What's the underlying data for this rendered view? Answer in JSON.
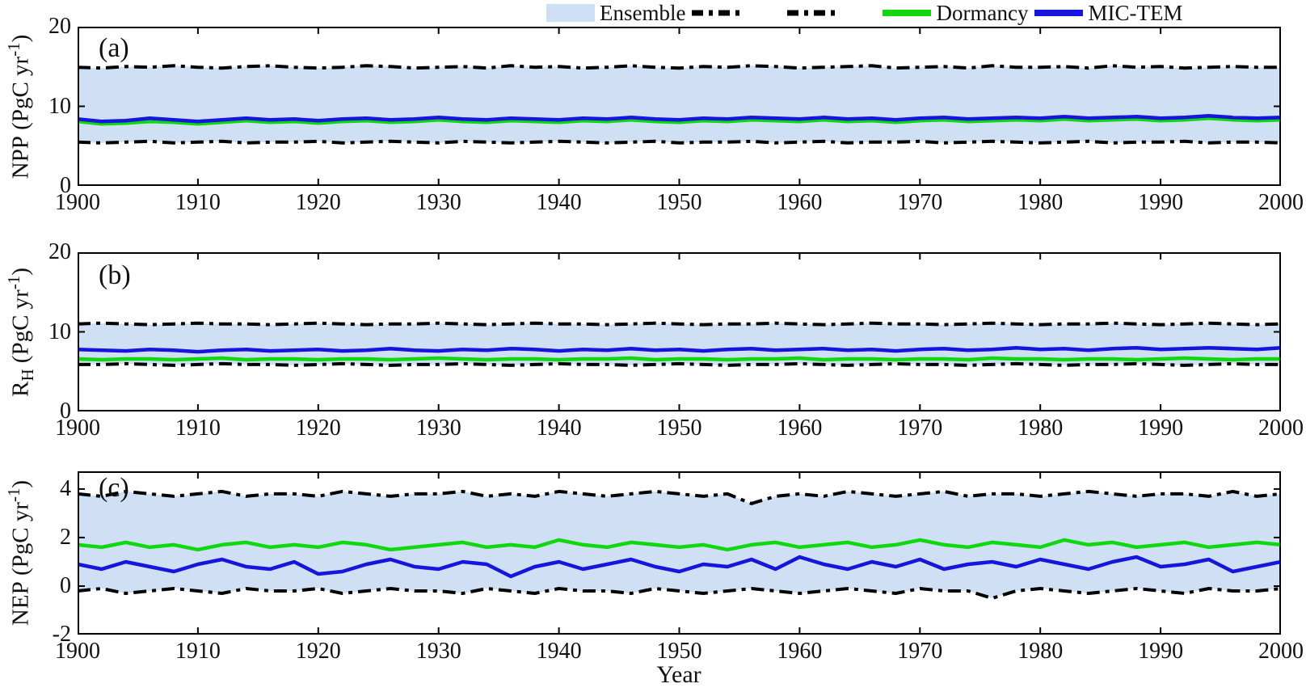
{
  "colors": {
    "ensemble_fill": "#cfe0f4",
    "bound_line": "#000000",
    "dormancy": "#0fd80f",
    "mic_tem": "#1515dd",
    "frame": "#000000"
  },
  "legend": {
    "items": [
      {
        "label": "Ensemble",
        "swatch": "patch"
      },
      {
        "label": "",
        "swatch": "dashdot"
      },
      {
        "label": "",
        "swatch": "dashdot"
      },
      {
        "label": "Dormancy",
        "swatch": "line-green"
      },
      {
        "label": "MIC-TEM",
        "swatch": "line-blue"
      }
    ]
  },
  "xlabel": "Year",
  "chart_data": [
    {
      "type": "line",
      "panel_label": "(a)",
      "ylabel": {
        "pre": "NPP",
        "sub": "",
        "mid": " (PgC yr",
        "sup": "-1",
        "post": ")"
      },
      "ylim": [
        0,
        20
      ],
      "yticks": [
        0,
        10,
        20
      ],
      "x": {
        "start": 1900,
        "end": 2000,
        "step": 2
      },
      "xticks": [
        1900,
        1910,
        1920,
        1930,
        1940,
        1950,
        1960,
        1970,
        1980,
        1990,
        2000
      ],
      "series": [
        {
          "name": "Ensemble upper bound",
          "style": "dashdot",
          "color": "bound_line",
          "values": [
            14.9,
            14.8,
            15.0,
            14.9,
            15.1,
            14.9,
            14.8,
            15.0,
            15.1,
            14.9,
            14.8,
            14.9,
            15.1,
            15.0,
            14.8,
            14.9,
            15.0,
            14.8,
            15.1,
            14.9,
            15.0,
            14.8,
            14.9,
            15.1,
            14.9,
            14.8,
            15.0,
            14.9,
            15.1,
            15.0,
            14.8,
            14.9,
            15.0,
            15.1,
            14.8,
            14.9,
            15.0,
            14.8,
            15.1,
            14.9,
            14.9,
            15.0,
            14.8,
            15.1,
            14.9,
            15.0,
            14.8,
            14.9,
            15.0,
            14.9,
            14.9
          ]
        },
        {
          "name": "Ensemble lower bound",
          "style": "dashdot",
          "color": "bound_line",
          "values": [
            5.5,
            5.4,
            5.5,
            5.6,
            5.4,
            5.5,
            5.6,
            5.4,
            5.5,
            5.5,
            5.6,
            5.4,
            5.5,
            5.6,
            5.5,
            5.4,
            5.6,
            5.5,
            5.4,
            5.5,
            5.6,
            5.5,
            5.4,
            5.5,
            5.6,
            5.4,
            5.5,
            5.5,
            5.6,
            5.4,
            5.5,
            5.6,
            5.4,
            5.5,
            5.5,
            5.6,
            5.4,
            5.5,
            5.6,
            5.5,
            5.4,
            5.5,
            5.6,
            5.4,
            5.5,
            5.5,
            5.6,
            5.4,
            5.5,
            5.5,
            5.4
          ]
        },
        {
          "name": "Dormancy",
          "style": "solid",
          "color": "dormancy",
          "values": [
            8.1,
            7.8,
            7.9,
            8.1,
            8.0,
            7.8,
            8.0,
            8.2,
            8.0,
            8.1,
            7.9,
            8.1,
            8.2,
            8.0,
            8.1,
            8.3,
            8.1,
            8.0,
            8.2,
            8.1,
            8.0,
            8.2,
            8.1,
            8.3,
            8.1,
            8.0,
            8.2,
            8.1,
            8.3,
            8.2,
            8.1,
            8.3,
            8.1,
            8.2,
            8.0,
            8.2,
            8.3,
            8.1,
            8.2,
            8.3,
            8.2,
            8.4,
            8.2,
            8.3,
            8.4,
            8.2,
            8.3,
            8.5,
            8.3,
            8.2,
            8.3
          ]
        },
        {
          "name": "MIC-TEM",
          "style": "solid",
          "color": "mic_tem",
          "values": [
            8.4,
            8.1,
            8.2,
            8.5,
            8.3,
            8.1,
            8.3,
            8.5,
            8.3,
            8.4,
            8.2,
            8.4,
            8.5,
            8.3,
            8.4,
            8.6,
            8.4,
            8.3,
            8.5,
            8.4,
            8.3,
            8.5,
            8.4,
            8.6,
            8.4,
            8.3,
            8.5,
            8.4,
            8.6,
            8.5,
            8.4,
            8.6,
            8.4,
            8.5,
            8.3,
            8.5,
            8.6,
            8.4,
            8.5,
            8.6,
            8.5,
            8.7,
            8.5,
            8.6,
            8.7,
            8.5,
            8.6,
            8.8,
            8.6,
            8.5,
            8.6
          ]
        }
      ]
    },
    {
      "type": "line",
      "panel_label": "(b)",
      "ylabel": {
        "pre": "R",
        "sub": "H",
        "mid": " (PgC yr",
        "sup": "-1",
        "post": ")"
      },
      "ylim": [
        0,
        20
      ],
      "yticks": [
        0,
        10,
        20
      ],
      "x": {
        "start": 1900,
        "end": 2000,
        "step": 2
      },
      "xticks": [
        1900,
        1910,
        1920,
        1930,
        1940,
        1950,
        1960,
        1970,
        1980,
        1990,
        2000
      ],
      "series": [
        {
          "name": "Ensemble upper bound",
          "style": "dashdot",
          "color": "bound_line",
          "values": [
            11.0,
            11.1,
            11.0,
            10.9,
            11.0,
            11.1,
            11.0,
            11.0,
            10.9,
            11.0,
            11.1,
            11.0,
            10.9,
            11.0,
            11.0,
            11.1,
            11.0,
            10.9,
            11.0,
            11.1,
            11.0,
            11.0,
            10.9,
            11.0,
            11.1,
            11.0,
            10.9,
            11.0,
            11.0,
            11.1,
            11.0,
            10.9,
            11.0,
            11.1,
            11.0,
            11.0,
            10.9,
            11.0,
            11.1,
            11.0,
            10.9,
            11.0,
            11.0,
            11.1,
            11.0,
            10.9,
            11.0,
            11.1,
            11.0,
            10.9,
            11.0
          ]
        },
        {
          "name": "Ensemble lower bound",
          "style": "dashdot",
          "color": "bound_line",
          "values": [
            5.9,
            5.9,
            6.0,
            5.9,
            5.8,
            5.9,
            6.0,
            5.9,
            5.9,
            5.8,
            5.9,
            6.0,
            5.9,
            5.8,
            5.9,
            5.9,
            6.0,
            5.9,
            5.8,
            5.9,
            6.0,
            5.9,
            5.9,
            5.8,
            5.9,
            6.0,
            5.9,
            5.8,
            5.9,
            5.9,
            6.0,
            5.9,
            5.8,
            5.9,
            6.0,
            5.9,
            5.9,
            5.8,
            5.9,
            6.0,
            5.9,
            5.8,
            5.9,
            5.9,
            6.0,
            5.9,
            5.8,
            5.9,
            6.0,
            5.9,
            5.9
          ]
        },
        {
          "name": "Dormancy",
          "style": "solid",
          "color": "dormancy",
          "values": [
            6.6,
            6.5,
            6.6,
            6.6,
            6.5,
            6.6,
            6.7,
            6.5,
            6.6,
            6.6,
            6.5,
            6.6,
            6.6,
            6.5,
            6.6,
            6.7,
            6.6,
            6.5,
            6.6,
            6.6,
            6.5,
            6.6,
            6.6,
            6.7,
            6.5,
            6.6,
            6.6,
            6.5,
            6.6,
            6.6,
            6.7,
            6.5,
            6.6,
            6.6,
            6.5,
            6.6,
            6.6,
            6.5,
            6.7,
            6.6,
            6.6,
            6.5,
            6.6,
            6.6,
            6.5,
            6.6,
            6.7,
            6.6,
            6.5,
            6.6,
            6.6
          ]
        },
        {
          "name": "MIC-TEM",
          "style": "solid",
          "color": "mic_tem",
          "values": [
            7.8,
            7.7,
            7.6,
            7.8,
            7.7,
            7.5,
            7.7,
            7.8,
            7.6,
            7.7,
            7.8,
            7.6,
            7.7,
            7.9,
            7.7,
            7.6,
            7.8,
            7.7,
            7.9,
            7.8,
            7.6,
            7.8,
            7.7,
            7.9,
            7.7,
            7.8,
            7.6,
            7.8,
            7.9,
            7.7,
            7.8,
            7.9,
            7.7,
            7.8,
            7.6,
            7.8,
            7.9,
            7.7,
            7.8,
            8.0,
            7.8,
            7.9,
            7.7,
            7.9,
            8.0,
            7.8,
            7.9,
            8.0,
            7.9,
            7.8,
            8.0
          ]
        }
      ]
    },
    {
      "type": "line",
      "panel_label": "(c)",
      "ylabel": {
        "pre": "NEP",
        "sub": "",
        "mid": " (PgC yr",
        "sup": "-1",
        "post": ")"
      },
      "ylim": [
        -2,
        4.73
      ],
      "yticks": [
        -2,
        0,
        2,
        4
      ],
      "x": {
        "start": 1900,
        "end": 2000,
        "step": 2
      },
      "xticks": [
        1900,
        1910,
        1920,
        1930,
        1940,
        1950,
        1960,
        1970,
        1980,
        1990,
        2000
      ],
      "series": [
        {
          "name": "Ensemble upper bound",
          "style": "dashdot",
          "color": "bound_line",
          "values": [
            3.8,
            3.7,
            3.9,
            3.8,
            3.7,
            3.8,
            3.9,
            3.7,
            3.8,
            3.8,
            3.7,
            3.9,
            3.8,
            3.7,
            3.8,
            3.8,
            3.9,
            3.7,
            3.8,
            3.7,
            3.9,
            3.8,
            3.7,
            3.8,
            3.9,
            3.8,
            3.7,
            3.8,
            3.4,
            3.7,
            3.8,
            3.7,
            3.9,
            3.8,
            3.7,
            3.8,
            3.9,
            3.7,
            3.8,
            3.8,
            3.7,
            3.8,
            3.9,
            3.8,
            3.7,
            3.8,
            3.8,
            3.7,
            3.9,
            3.7,
            3.8
          ]
        },
        {
          "name": "Ensemble lower bound",
          "style": "dashdot",
          "color": "bound_line",
          "values": [
            -0.2,
            -0.1,
            -0.3,
            -0.2,
            -0.1,
            -0.2,
            -0.3,
            -0.1,
            -0.2,
            -0.2,
            -0.1,
            -0.3,
            -0.2,
            -0.1,
            -0.2,
            -0.2,
            -0.3,
            -0.1,
            -0.2,
            -0.3,
            -0.1,
            -0.2,
            -0.2,
            -0.3,
            -0.1,
            -0.2,
            -0.3,
            -0.2,
            -0.1,
            -0.2,
            -0.3,
            -0.2,
            -0.1,
            -0.2,
            -0.3,
            -0.1,
            -0.2,
            -0.2,
            -0.5,
            -0.2,
            -0.1,
            -0.2,
            -0.3,
            -0.2,
            -0.1,
            -0.2,
            -0.3,
            -0.1,
            -0.2,
            -0.2,
            -0.1
          ]
        },
        {
          "name": "Dormancy",
          "style": "solid",
          "color": "dormancy",
          "values": [
            1.7,
            1.6,
            1.8,
            1.6,
            1.7,
            1.5,
            1.7,
            1.8,
            1.6,
            1.7,
            1.6,
            1.8,
            1.7,
            1.5,
            1.6,
            1.7,
            1.8,
            1.6,
            1.7,
            1.6,
            1.9,
            1.7,
            1.6,
            1.8,
            1.7,
            1.6,
            1.7,
            1.5,
            1.7,
            1.8,
            1.6,
            1.7,
            1.8,
            1.6,
            1.7,
            1.9,
            1.7,
            1.6,
            1.8,
            1.7,
            1.6,
            1.9,
            1.7,
            1.8,
            1.6,
            1.7,
            1.8,
            1.6,
            1.7,
            1.8,
            1.7
          ]
        },
        {
          "name": "MIC-TEM",
          "style": "solid",
          "color": "mic_tem",
          "values": [
            0.9,
            0.7,
            1.0,
            0.8,
            0.6,
            0.9,
            1.1,
            0.8,
            0.7,
            1.0,
            0.5,
            0.6,
            0.9,
            1.1,
            0.8,
            0.7,
            1.0,
            0.9,
            0.4,
            0.8,
            1.0,
            0.7,
            0.9,
            1.1,
            0.8,
            0.6,
            0.9,
            0.8,
            1.1,
            0.7,
            1.2,
            0.9,
            0.7,
            1.0,
            0.8,
            1.1,
            0.7,
            0.9,
            1.0,
            0.8,
            1.1,
            0.9,
            0.7,
            1.0,
            1.2,
            0.8,
            0.9,
            1.1,
            0.6,
            0.8,
            1.0
          ]
        }
      ]
    }
  ]
}
